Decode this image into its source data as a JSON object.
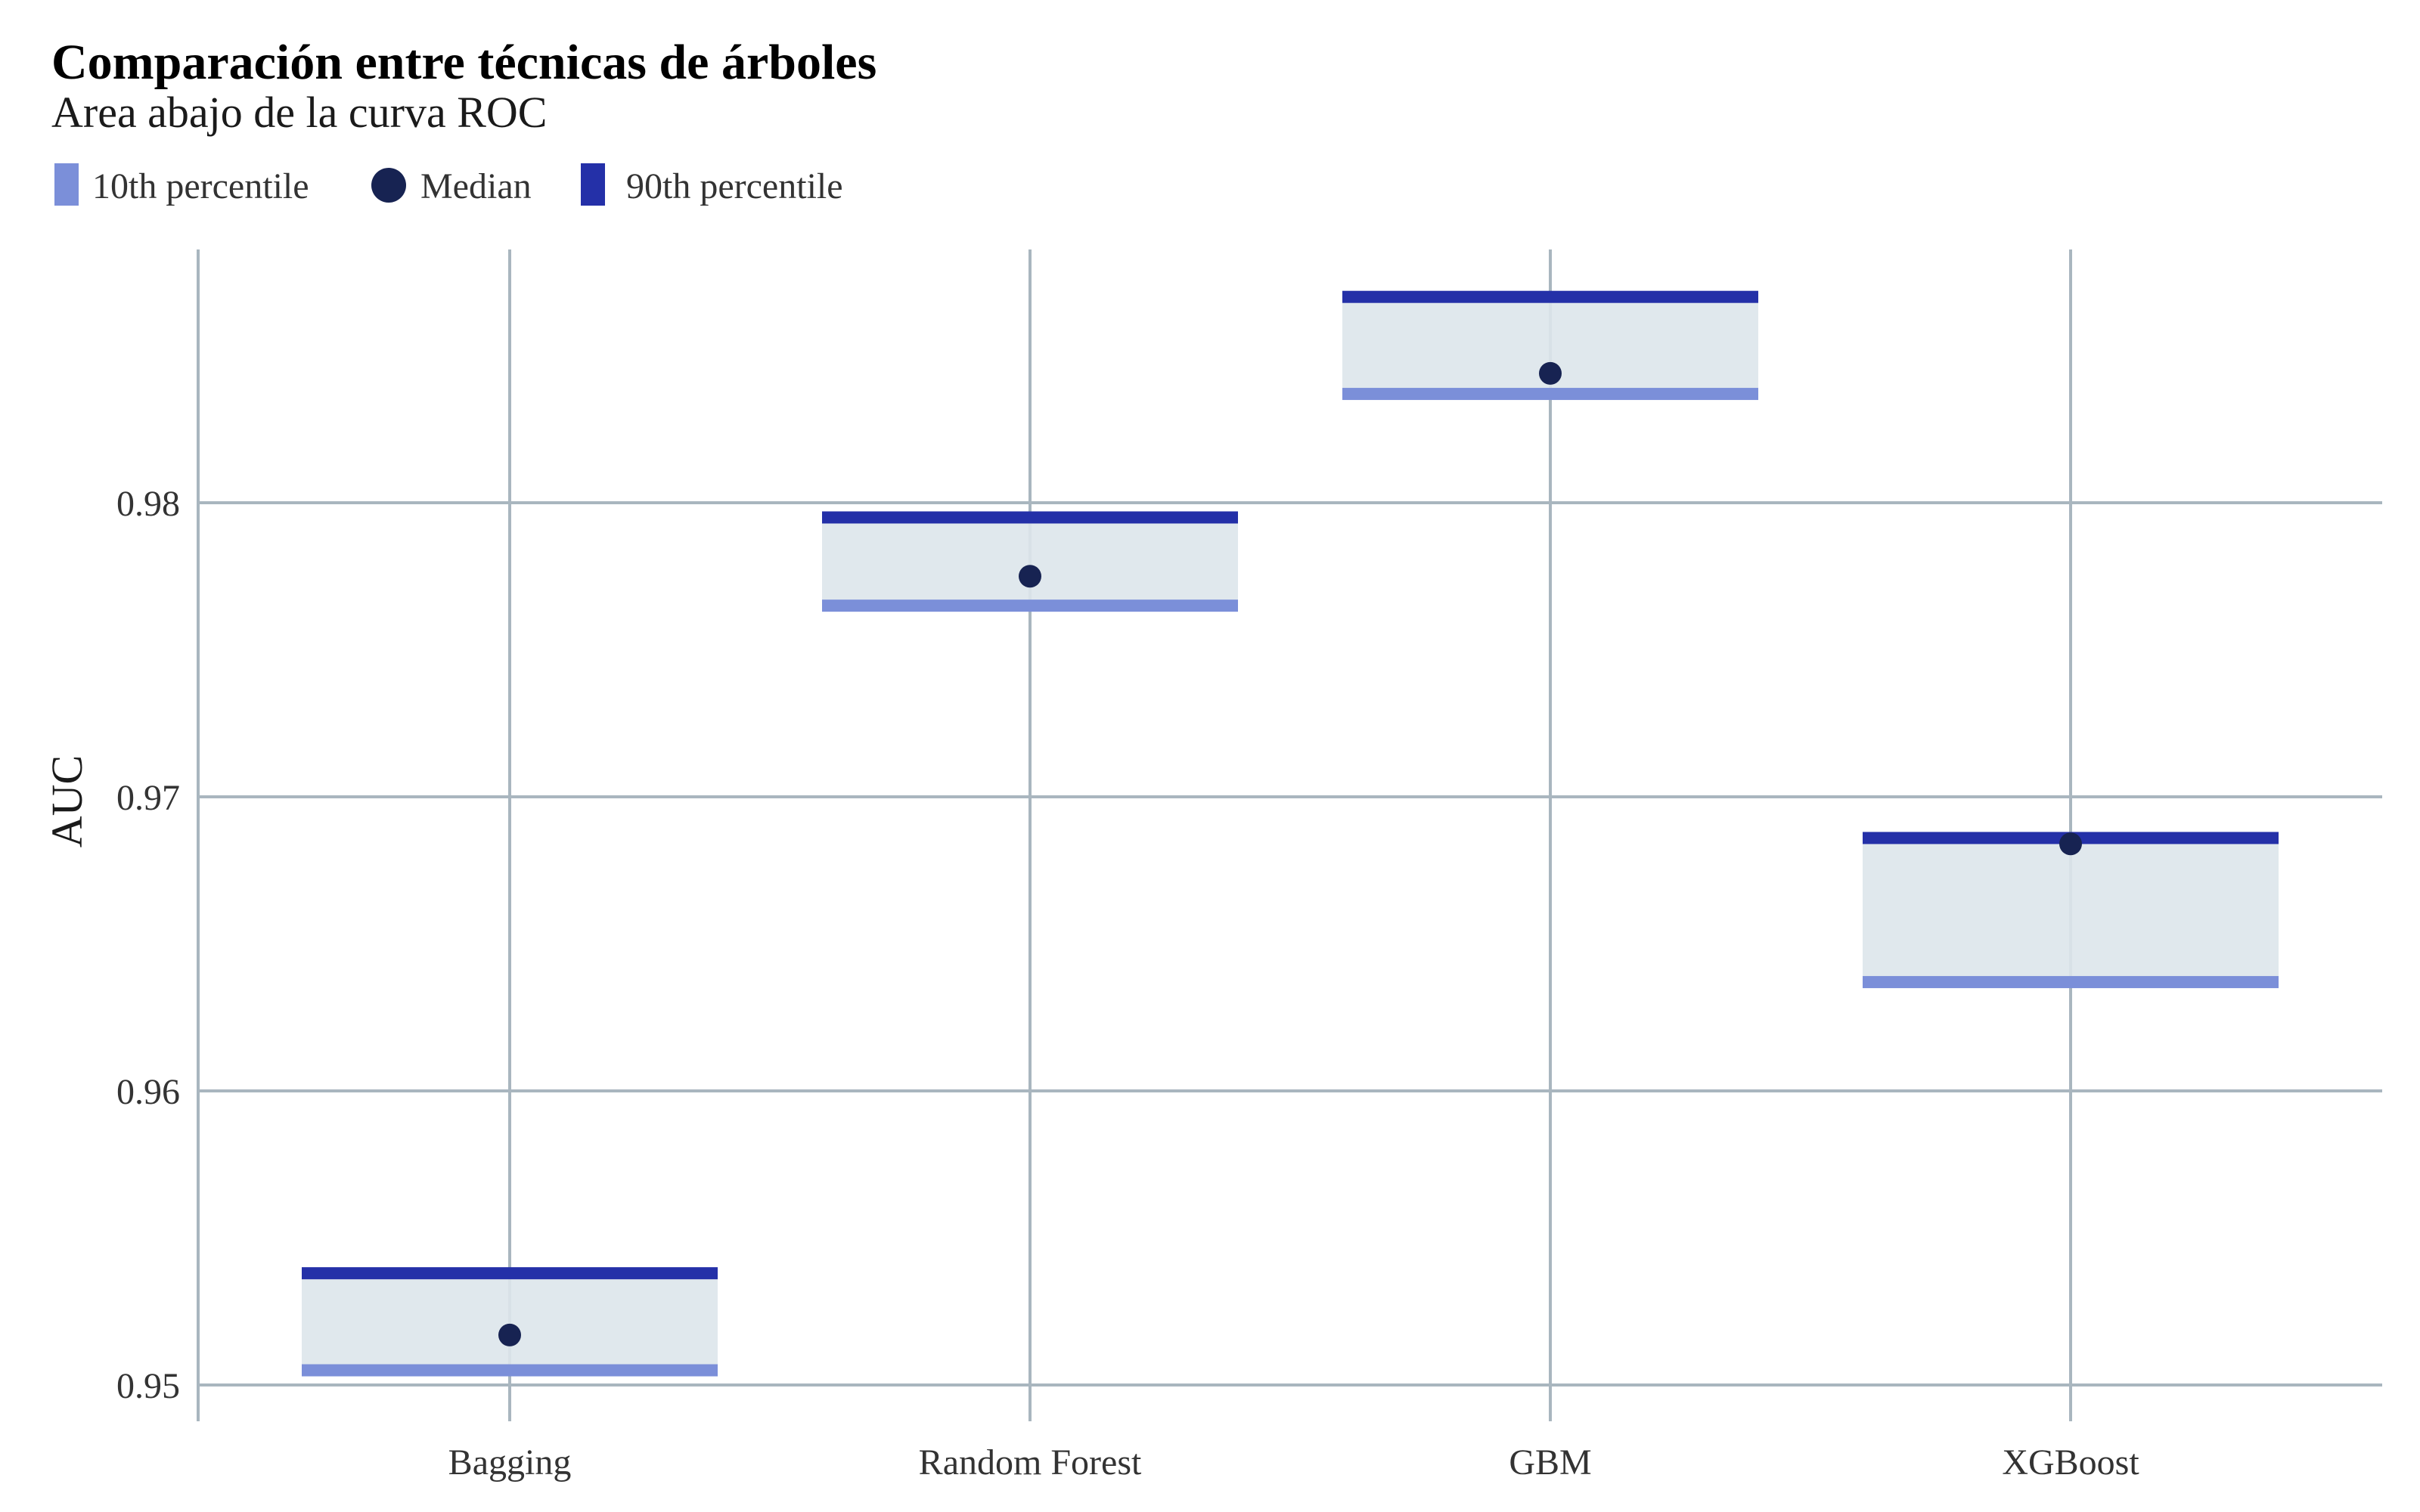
{
  "chart_data": {
    "type": "bar",
    "title": "Comparación entre técnicas de árboles",
    "subtitle": "Area abajo de la curva ROC",
    "xlabel": "",
    "ylabel": "AUC",
    "categories": [
      "Bagging",
      "Random Forest",
      "GBM",
      "XGBoost"
    ],
    "series": [
      {
        "name": "10th percentile",
        "values": [
          0.9505,
          0.9765,
          0.9837,
          0.9637
        ]
      },
      {
        "name": "Median",
        "values": [
          0.9517,
          0.9775,
          0.9844,
          0.9684
        ]
      },
      {
        "name": "90th percentile",
        "values": [
          0.9538,
          0.9795,
          0.987,
          0.9686
        ]
      }
    ],
    "ylim": [
      0.95,
      0.9885
    ],
    "yticks": [
      0.95,
      0.96,
      0.97,
      0.98
    ],
    "ytick_labels": [
      "0.95",
      "0.96",
      "0.97",
      "0.98"
    ],
    "grid": true,
    "legend_position": "top-left",
    "colors": {
      "p10": "#7b8fd9",
      "median": "#172352",
      "p90": "#2430a8",
      "range_fill": "#dde5eb",
      "grid": "#a9b6bf"
    }
  }
}
